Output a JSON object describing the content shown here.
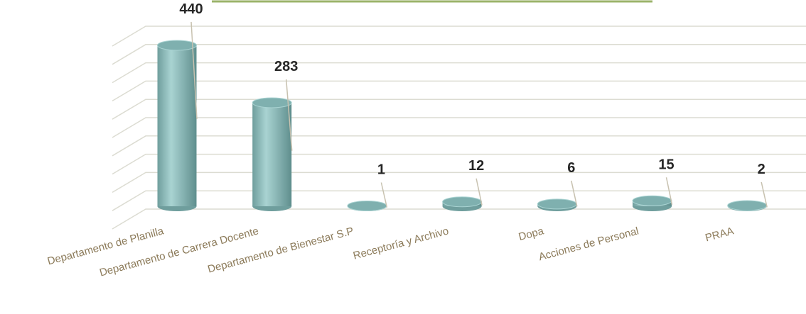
{
  "chart_data": {
    "type": "bar",
    "categories": [
      "Departamento de Planilla",
      "Departamento de Carrera Docente",
      "Departamento de Bienestar S.P",
      "Receptoría y Archivo",
      "Dopa",
      "Acciones de Personal",
      "PRAA"
    ],
    "values": [
      440,
      283,
      1,
      12,
      6,
      15,
      2
    ],
    "color": "#8fc3c2",
    "ylim": [
      0,
      500
    ],
    "yticks": [
      0,
      50,
      100,
      150,
      200,
      250,
      300,
      350,
      400,
      450,
      500
    ],
    "grid": true
  }
}
